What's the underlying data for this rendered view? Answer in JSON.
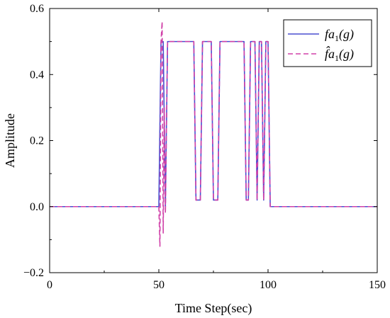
{
  "chart_data": {
    "type": "line",
    "xlabel": "Time Step(sec)",
    "ylabel": "Amplitude",
    "xlim": [
      0,
      150
    ],
    "ylim": [
      -0.2,
      0.6
    ],
    "xticks": [
      "0",
      "50",
      "100",
      "150"
    ],
    "yticks": [
      "−0.2",
      "0.0",
      "0.2",
      "0.4",
      "0.6"
    ],
    "grid": false,
    "legend_position": "top-right",
    "series": [
      {
        "name": "fa1(g)",
        "legend_base": "fa",
        "legend_sub": "1",
        "legend_arg": "(g)",
        "color": "#4a4fd0",
        "dash": "solid",
        "points": [
          [
            0,
            0
          ],
          [
            50,
            0
          ],
          [
            51,
            0.5
          ],
          [
            52,
            0.5
          ],
          [
            53,
            0.0
          ],
          [
            54,
            0.5
          ],
          [
            66,
            0.5
          ],
          [
            67,
            0.02
          ],
          [
            69,
            0.02
          ],
          [
            70,
            0.5
          ],
          [
            74,
            0.5
          ],
          [
            75,
            0.02
          ],
          [
            77,
            0.02
          ],
          [
            78,
            0.5
          ],
          [
            89,
            0.5
          ],
          [
            90,
            0.02
          ],
          [
            91,
            0.02
          ],
          [
            92,
            0.5
          ],
          [
            94,
            0.5
          ],
          [
            95,
            0.02
          ],
          [
            96,
            0.5
          ],
          [
            97,
            0.5
          ],
          [
            98,
            0.02
          ],
          [
            99,
            0.5
          ],
          [
            100,
            0.5
          ],
          [
            101,
            0.0
          ],
          [
            150,
            0
          ]
        ]
      },
      {
        "name": "f̂a1(g)",
        "legend_base": "f̂a",
        "legend_sub": "1",
        "legend_arg": "(g)",
        "color": "#d040a8",
        "dash": "dashed",
        "points": [
          [
            0,
            0
          ],
          [
            50,
            0
          ],
          [
            50.5,
            -0.12
          ],
          [
            51,
            0.5
          ],
          [
            51.5,
            0.56
          ],
          [
            52,
            -0.08
          ],
          [
            52.5,
            0.3
          ],
          [
            53,
            -0.02
          ],
          [
            54,
            0.5
          ],
          [
            66,
            0.5
          ],
          [
            67,
            0.02
          ],
          [
            69,
            0.02
          ],
          [
            70,
            0.5
          ],
          [
            74,
            0.5
          ],
          [
            75,
            0.02
          ],
          [
            77,
            0.02
          ],
          [
            78,
            0.5
          ],
          [
            89,
            0.5
          ],
          [
            90,
            0.02
          ],
          [
            91,
            0.02
          ],
          [
            92,
            0.5
          ],
          [
            94,
            0.5
          ],
          [
            95,
            0.02
          ],
          [
            96,
            0.5
          ],
          [
            97,
            0.5
          ],
          [
            98,
            0.02
          ],
          [
            99,
            0.5
          ],
          [
            100,
            0.5
          ],
          [
            101,
            0.0
          ],
          [
            150,
            0
          ]
        ]
      }
    ]
  }
}
